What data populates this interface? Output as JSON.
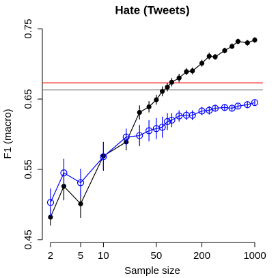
{
  "chart_data": {
    "type": "line",
    "title": "Hate (Tweets)",
    "x_label": "Sample size",
    "y_label": "F1 (macro)",
    "log_x": true,
    "x": [
      2,
      3,
      5,
      10,
      20,
      30,
      40,
      50,
      60,
      70,
      80,
      100,
      125,
      150,
      200,
      250,
      300,
      400,
      500,
      600,
      800,
      1000
    ],
    "series": [
      {
        "color": "#000000",
        "marker": "filled-circle",
        "values": [
          0.482,
          0.526,
          0.501,
          0.569,
          0.589,
          0.631,
          0.639,
          0.649,
          0.661,
          0.667,
          0.674,
          0.68,
          0.689,
          0.69,
          0.701,
          0.711,
          0.71,
          0.719,
          0.725,
          0.732,
          0.73,
          0.734
        ],
        "errors": [
          0.012,
          0.02,
          0.02,
          0.02,
          0.012,
          0.01,
          0.008,
          0.007,
          0.007,
          0.006,
          0.006,
          0.006,
          0.005,
          0.005,
          0.005,
          0.005,
          0.004,
          0.004,
          0.004,
          0.004,
          0.004,
          0.004
        ]
      },
      {
        "color": "#0000ff",
        "marker": "open-circle",
        "values": [
          0.503,
          0.545,
          0.531,
          0.568,
          0.596,
          0.598,
          0.605,
          0.608,
          0.61,
          0.618,
          0.62,
          0.626,
          0.627,
          0.627,
          0.633,
          0.634,
          0.637,
          0.638,
          0.637,
          0.64,
          0.642,
          0.645
        ],
        "errors": [
          0.02,
          0.02,
          0.02,
          0.02,
          0.012,
          0.015,
          0.015,
          0.015,
          0.015,
          0.012,
          0.01,
          0.008,
          0.007,
          0.007,
          0.006,
          0.006,
          0.005,
          0.005,
          0.005,
          0.004,
          0.004,
          0.004
        ]
      }
    ],
    "hlines": [
      {
        "value": 0.673,
        "color": "#ff0000"
      },
      {
        "value": 0.663,
        "color": "#808080"
      }
    ],
    "xlim": [
      1.56,
      1283
    ],
    "ylim": [
      0.446,
      0.754
    ],
    "xticks": [
      2,
      5,
      10,
      50,
      200,
      1000
    ],
    "yticks": [
      0.45,
      0.55,
      0.65,
      0.75
    ]
  }
}
